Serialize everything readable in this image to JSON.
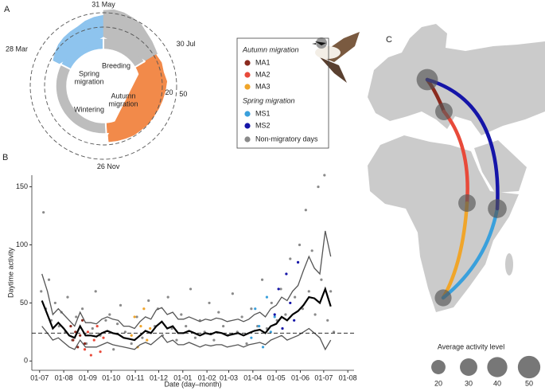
{
  "chart_data": [
    {
      "type": "radial",
      "panel": "A",
      "periods": [
        {
          "name": "Spring migration",
          "color": "#8ec4ee",
          "start": 87,
          "end": 151,
          "x": [
            87,
            95,
            103,
            111,
            119,
            127,
            135,
            143,
            151
          ],
          "values": [
            15,
            20,
            25,
            28,
            30,
            32,
            38,
            42,
            45
          ]
        },
        {
          "name": "Breeding",
          "color": "#bdbdbd",
          "start": 151,
          "end": 211,
          "x": [
            151,
            159,
            167,
            175,
            183,
            191,
            199,
            207,
            211
          ],
          "values": [
            55,
            58,
            56,
            52,
            48,
            40,
            35,
            30,
            28
          ]
        },
        {
          "name": "Autumn migration",
          "color": "#f28a4a",
          "start": 211,
          "end": 330,
          "x": [
            211,
            220,
            229,
            238,
            247,
            256,
            265,
            274,
            283,
            292,
            301,
            310,
            319,
            328
          ],
          "values": [
            25,
            28,
            26,
            30,
            27,
            24,
            22,
            20,
            20,
            18,
            18,
            16,
            15,
            14
          ]
        },
        {
          "name": "Wintering",
          "color": "#bdbdbd",
          "start": 330,
          "end": 87
        }
      ],
      "xticks": [
        {
          "value": 151,
          "label": "31 May"
        },
        {
          "value": 211,
          "label": "30 Jul"
        },
        {
          "value": 330,
          "label": "26 Nov"
        },
        {
          "value": 87,
          "label": "28 Mar"
        }
      ],
      "rlim": [
        0,
        60
      ],
      "rticks": [
        20,
        50
      ]
    },
    {
      "type": "scatter",
      "panel": "B",
      "x_label": "Date (day–month)",
      "y_label": "Daytime activity",
      "xlim": [
        -10,
        404
      ],
      "ylim": [
        -8,
        160
      ],
      "xticks": [
        {
          "value": 0,
          "label": "01-07"
        },
        {
          "value": 31,
          "label": "01-08"
        },
        {
          "value": 62,
          "label": "01-09"
        },
        {
          "value": 92,
          "label": "01-10"
        },
        {
          "value": 123,
          "label": "01-11"
        },
        {
          "value": 153,
          "label": "01-12"
        },
        {
          "value": 184,
          "label": "01-01"
        },
        {
          "value": 215,
          "label": "01-02"
        },
        {
          "value": 243,
          "label": "01-03"
        },
        {
          "value": 274,
          "label": "01-04"
        },
        {
          "value": 304,
          "label": "01-05"
        },
        {
          "value": 335,
          "label": "01-06"
        },
        {
          "value": 365,
          "label": "01-07"
        },
        {
          "value": 396,
          "label": "01-08"
        }
      ],
      "yticks": [
        0,
        50,
        100,
        150
      ],
      "reference_line": 24,
      "legend_titles": [
        "Autumn migration",
        "Spring migration"
      ],
      "series": [
        {
          "name": "MA1",
          "color": "#8b2a1e",
          "x": [
            40,
            43,
            46,
            49,
            52,
            55,
            58
          ],
          "values": [
            30,
            18,
            25,
            12,
            22,
            35,
            15
          ]
        },
        {
          "name": "MA2",
          "color": "#e84a3a",
          "x": [
            58,
            62,
            66,
            70,
            74,
            78,
            82
          ],
          "values": [
            10,
            25,
            5,
            18,
            30,
            8,
            20
          ]
        },
        {
          "name": "MA3",
          "color": "#f0a52a",
          "x": [
            118,
            122,
            126,
            130,
            134,
            138,
            142
          ],
          "values": [
            22,
            38,
            12,
            30,
            45,
            18,
            28
          ]
        },
        {
          "name": "MS1",
          "color": "#3aa0dc",
          "x": [
            272,
            277,
            282,
            287,
            292,
            297,
            302
          ],
          "values": [
            20,
            45,
            30,
            12,
            55,
            25,
            38
          ]
        },
        {
          "name": "MS2",
          "color": "#1515a8",
          "x": [
            302,
            307,
            312,
            317,
            322,
            327,
            332
          ],
          "values": [
            40,
            62,
            28,
            75,
            50,
            35,
            85
          ]
        },
        {
          "name": "Non-migratory days",
          "color": "#8a8a8a",
          "x": [
            2,
            5,
            8,
            12,
            15,
            20,
            25,
            28,
            33,
            36,
            42,
            47,
            55,
            60,
            68,
            72,
            78,
            85,
            90,
            95,
            100,
            104,
            110,
            118,
            125,
            132,
            140,
            148,
            152,
            158,
            165,
            170,
            176,
            182,
            188,
            194,
            200,
            206,
            212,
            218,
            224,
            230,
            236,
            242,
            248,
            254,
            260,
            266,
            272,
            280,
            286,
            292,
            298,
            305,
            310,
            316,
            322,
            328,
            334,
            338,
            342,
            346,
            350,
            354,
            358,
            362,
            366,
            370,
            374,
            378
          ],
          "values": [
            60,
            128,
            45,
            70,
            35,
            50,
            30,
            42,
            25,
            55,
            18,
            38,
            45,
            15,
            28,
            60,
            22,
            35,
            40,
            10,
            32,
            48,
            25,
            15,
            38,
            20,
            52,
            30,
            45,
            22,
            55,
            28,
            18,
            40,
            30,
            62,
            20,
            35,
            25,
            50,
            18,
            42,
            30,
            22,
            58,
            25,
            38,
            15,
            45,
            30,
            70,
            28,
            50,
            35,
            62,
            40,
            88,
            55,
            100,
            45,
            130,
            60,
            95,
            40,
            150,
            70,
            160,
            35,
            60,
            25
          ]
        }
      ],
      "lines": {
        "x": [
          3,
          10,
          17,
          24,
          31,
          38,
          45,
          52,
          59,
          66,
          73,
          80,
          87,
          94,
          101,
          108,
          115,
          122,
          129,
          136,
          143,
          150,
          157,
          164,
          171,
          178,
          185,
          192,
          199,
          206,
          213,
          220,
          227,
          234,
          241,
          248,
          255,
          262,
          269,
          276,
          283,
          290,
          297,
          304,
          311,
          318,
          325,
          332,
          339,
          346,
          353,
          360,
          367,
          374
        ],
        "series": [
          {
            "color": "#555555",
            "values": [
              75,
              60,
              40,
              45,
              40,
              35,
              30,
              42,
              33,
              33,
              32,
              36,
              38,
              36,
              35,
              30,
              30,
              28,
              34,
              38,
              36,
              44,
              46,
              40,
              42,
              36,
              36,
              38,
              36,
              34,
              36,
              35,
              37,
              36,
              34,
              35,
              36,
              34,
              36,
              40,
              42,
              38,
              45,
              48,
              55,
              52,
              60,
              65,
              78,
              90,
              80,
              75,
              112,
              90
            ]
          },
          {
            "color": "#555555",
            "values": [
              30,
              24,
              18,
              20,
              16,
              12,
              10,
              18,
              12,
              12,
              12,
              14,
              16,
              14,
              13,
              12,
              11,
              10,
              14,
              16,
              14,
              18,
              22,
              16,
              18,
              14,
              14,
              16,
              14,
              12,
              14,
              13,
              14,
              14,
              12,
              13,
              14,
              12,
              14,
              15,
              16,
              14,
              18,
              20,
              22,
              18,
              20,
              22,
              25,
              28,
              24,
              20,
              10,
              18
            ]
          },
          {
            "color": "#000000",
            "values": [
              52,
              40,
              28,
              33,
              28,
              22,
              20,
              30,
              22,
              22,
              21,
              24,
              26,
              24,
              23,
              20,
              19,
              18,
              22,
              26,
              24,
              30,
              34,
              28,
              30,
              24,
              24,
              26,
              24,
              22,
              24,
              23,
              25,
              24,
              22,
              23,
              24,
              22,
              24,
              26,
              27,
              24,
              30,
              32,
              38,
              35,
              40,
              43,
              48,
              55,
              54,
              50,
              62,
              47
            ]
          }
        ]
      }
    },
    {
      "type": "map",
      "panel": "C",
      "values": [
        45,
        30,
        30,
        35,
        28
      ],
      "size_legend": {
        "title": "Average activity level",
        "values": [
          20,
          30,
          40,
          50
        ]
      }
    }
  ]
}
